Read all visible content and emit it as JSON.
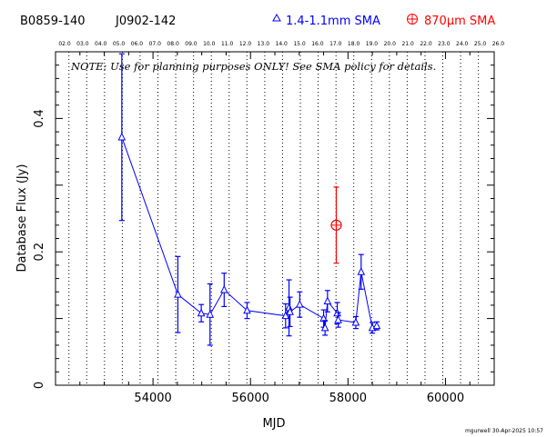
{
  "header": {
    "source_name": "B0859-140",
    "alt_name": "J0902-142",
    "legend_blue": "1.4-1.1mm SMA",
    "legend_red": "870μm SMA",
    "legend_blue_color": "#0000ff",
    "legend_red_color": "#ff0000"
  },
  "note": "NOTE: Use for planning purposes ONLY! See SMA policy for details.",
  "footer": "mgurwell 30-Apr-2025 10:57",
  "chart_data": {
    "type": "scatter",
    "xlabel": "MJD",
    "ylabel": "Database Flux (Jy)",
    "xlim": [
      52000,
      61000
    ],
    "ylim": [
      0,
      0.5
    ],
    "x_ticks": [
      54000,
      56000,
      58000,
      60000
    ],
    "x_tick_labels": [
      "54000",
      "56000",
      "58000",
      "60000"
    ],
    "y_ticks": [
      0,
      0.2,
      0.4
    ],
    "y_tick_labels": [
      "0",
      "0.2",
      "0.4"
    ],
    "top_axis_labels": [
      "02.0",
      "03.0",
      "04.0",
      "05.0",
      "06.0",
      "07.0",
      "08.0",
      "09.0",
      "10.0",
      "11.0",
      "12.0",
      "13.0",
      "14.0",
      "15.0",
      "16.0",
      "17.0",
      "18.0",
      "19.0",
      "20.0",
      "21.0",
      "22.0",
      "23.0",
      "24.0",
      "25.0",
      "26.0"
    ],
    "year_gridlines_mjd": [
      52275,
      52640,
      53005,
      53371,
      53736,
      54101,
      54466,
      54832,
      55197,
      55562,
      55927,
      56293,
      56658,
      57023,
      57388,
      57754,
      58119,
      58484,
      58849,
      59215,
      59580,
      59945,
      60310,
      60676
    ],
    "grid": "dotted vertical lines at each year",
    "series": [
      {
        "name": "1.4-1.1mm SMA",
        "color": "#0000ff",
        "marker": "triangle",
        "connected": true,
        "points": [
          {
            "x": 53360,
            "y": 0.372,
            "err": 0.125
          },
          {
            "x": 54510,
            "y": 0.136,
            "err": 0.057
          },
          {
            "x": 54990,
            "y": 0.108,
            "err": 0.013
          },
          {
            "x": 55170,
            "y": 0.106,
            "err": 0.046
          },
          {
            "x": 55460,
            "y": 0.143,
            "err": 0.025
          },
          {
            "x": 55930,
            "y": 0.112,
            "err": 0.012
          },
          {
            "x": 56720,
            "y": 0.104,
            "err": 0.018
          },
          {
            "x": 56790,
            "y": 0.116,
            "err": 0.042
          },
          {
            "x": 56810,
            "y": 0.11,
            "err": 0.022
          },
          {
            "x": 57010,
            "y": 0.121,
            "err": 0.019
          },
          {
            "x": 57500,
            "y": 0.1,
            "err": 0.013
          },
          {
            "x": 57530,
            "y": 0.086,
            "err": 0.011
          },
          {
            "x": 57580,
            "y": 0.126,
            "err": 0.016
          },
          {
            "x": 57780,
            "y": 0.108,
            "err": 0.016
          },
          {
            "x": 57800,
            "y": 0.098,
            "err": 0.011
          },
          {
            "x": 58160,
            "y": 0.094,
            "err": 0.009
          },
          {
            "x": 58270,
            "y": 0.17,
            "err": 0.026
          },
          {
            "x": 58500,
            "y": 0.086,
            "err": 0.008
          },
          {
            "x": 58590,
            "y": 0.089,
            "err": 0.006
          }
        ]
      },
      {
        "name": "870μm SMA",
        "color": "#ff0000",
        "marker": "circle-plus",
        "connected": false,
        "points": [
          {
            "x": 57760,
            "y": 0.24,
            "err": 0.057
          }
        ]
      }
    ]
  }
}
